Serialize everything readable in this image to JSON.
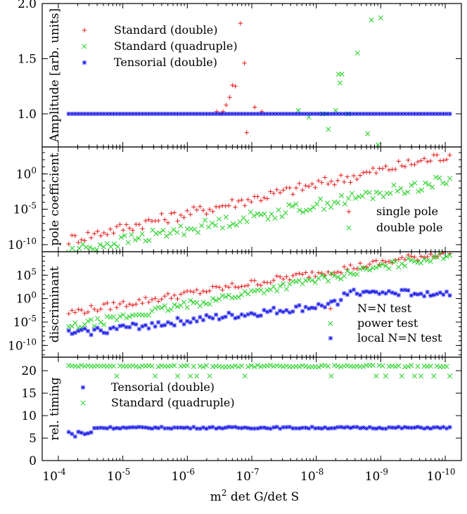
{
  "chart_data": [
    {
      "type": "scatter",
      "xlabel": "m2 det G/det S",
      "ylabel": "Amplitude [arb. units]",
      "yscale": "linear",
      "ylim": [
        0.7,
        2.0
      ],
      "yticks": [
        {
          "v": 1.0,
          "label": "1.0"
        },
        {
          "v": 1.5,
          "label": "1.5"
        },
        {
          "v": 2.0,
          "label": "2.0"
        }
      ],
      "legend_position": "top-left",
      "series": [
        {
          "name": "Standard (double)",
          "marker": "plus",
          "color": "#e8191b",
          "x": [
            1.5e-07,
            1.3e-07,
            2e-07,
            3e-07,
            2.2e-07,
            1.8e-07,
            1.2e-07,
            9e-08,
            7e-08,
            2.5e-07,
            3.5e-07,
            2.8e-07
          ],
          "y": [
            1.82,
            1.46,
            1.26,
            1.0,
            1.15,
            1.25,
            0.83,
            1.06,
            1.02,
            1.08,
            1.02,
            1.02
          ]
        },
        {
          "name": "Standard (quadruple)",
          "marker": "cross",
          "color": "#1fd01f",
          "x": [
            2.3e-09,
            1.4e-09,
            1e-09,
            1.6e-09,
            4e-09,
            4.5e-09,
            4.3e-09,
            7e-09,
            6.5e-09,
            5e-09,
            1.9e-08,
            1.3e-08,
            8e-09,
            3.2e-09,
            1.1e-09
          ],
          "y": [
            1.55,
            1.85,
            1.87,
            0.82,
            1.36,
            1.36,
            1.28,
            1.0,
            0.86,
            1.03,
            1.03,
            0.97,
            1.0,
            1.0,
            0.72
          ]
        },
        {
          "name": "Tensorial (double)",
          "marker": "star",
          "color": "#1a1ae8",
          "x_range": [
            6.9e-05,
            8.5e-11
          ],
          "count": 120,
          "y_const": 1.0
        }
      ]
    },
    {
      "type": "scatter",
      "ylabel": "pole coefficient",
      "yscale": "log",
      "ylim": [
        -11,
        3.8
      ],
      "yticks": [
        {
          "v": 0,
          "label": "10",
          "exp": "0"
        },
        {
          "v": -5,
          "label": "10",
          "exp": "-5"
        },
        {
          "v": -10,
          "label": "10",
          "exp": "-10"
        }
      ],
      "legend_position": "bottom-right",
      "series": [
        {
          "name": "single pole",
          "marker": "plus",
          "color": "#e8191b",
          "x_range": [
            6.9e-05,
            8.5e-11
          ],
          "count": 120,
          "log_trend": [
            -9.3,
            2.7
          ]
        },
        {
          "name": "double pole",
          "marker": "cross",
          "color": "#1fd01f",
          "x_range": [
            6.9e-05,
            8.5e-11
          ],
          "count": 110,
          "log_trend": [
            -10.9,
            -0.9
          ]
        }
      ]
    },
    {
      "type": "scatter",
      "ylabel": "discriminant",
      "yscale": "log",
      "ylim": [
        -12.5,
        10
      ],
      "yticks": [
        {
          "v": 5,
          "label": "10",
          "exp": "5"
        },
        {
          "v": 0,
          "label": "10",
          "exp": "0"
        },
        {
          "v": -5,
          "label": "10",
          "exp": "-5"
        },
        {
          "v": -10,
          "label": "10",
          "exp": "-10"
        }
      ],
      "legend_position": "bottom-right",
      "series": [
        {
          "name": "N=N test",
          "marker": "plus",
          "color": "#e8191b",
          "x_range": [
            6.9e-05,
            8.5e-11
          ],
          "count": 120,
          "log_trend": [
            -3.0,
            10.0
          ]
        },
        {
          "name": "power test",
          "marker": "cross",
          "color": "#1fd01f",
          "x_range": [
            6.9e-05,
            8.5e-11
          ],
          "count": 120,
          "log_trend": [
            -6.2,
            9.5
          ]
        },
        {
          "name": "local N=N test",
          "marker": "star",
          "color": "#1a1ae8",
          "x_range": [
            6.9e-05,
            8.5e-11
          ],
          "count": 120,
          "log_trend": [
            -7.5,
            1.5
          ]
        }
      ]
    },
    {
      "type": "scatter",
      "ylabel": "rel. timing",
      "yscale": "linear",
      "ylim": [
        0,
        23
      ],
      "yticks": [
        {
          "v": 0,
          "label": "0"
        },
        {
          "v": 5,
          "label": "5"
        },
        {
          "v": 10,
          "label": "10"
        },
        {
          "v": 15,
          "label": "15"
        },
        {
          "v": 20,
          "label": "20"
        }
      ],
      "xticks": [
        {
          "v": -4,
          "label": "10",
          "exp": "-4"
        },
        {
          "v": -5,
          "label": "10",
          "exp": "-5"
        },
        {
          "v": -6,
          "label": "10",
          "exp": "-6"
        },
        {
          "v": -7,
          "label": "10",
          "exp": "-7"
        },
        {
          "v": -8,
          "label": "10",
          "exp": "-8"
        },
        {
          "v": -9,
          "label": "10",
          "exp": "-9"
        },
        {
          "v": -10,
          "label": "10",
          "exp": "-10"
        }
      ],
      "legend_position": "middle-left",
      "series": [
        {
          "name": "Tensorial (double)",
          "marker": "star",
          "color": "#1a1ae8",
          "x_range": [
            6.9e-05,
            8.5e-11
          ],
          "count": 120,
          "y_typical": 7.3
        },
        {
          "name": "Standard (quadruple)",
          "marker": "cross",
          "color": "#1fd01f",
          "x_range": [
            6.9e-05,
            8.5e-11
          ],
          "count": 120,
          "y_typical": 21.0
        }
      ]
    }
  ],
  "xaxis": {
    "label_base": "m",
    "label_sup": "2",
    "label_rest": " det G/det S",
    "reversed": true,
    "log": true,
    "lim_log10": [
      -3.75,
      -10.25
    ]
  }
}
